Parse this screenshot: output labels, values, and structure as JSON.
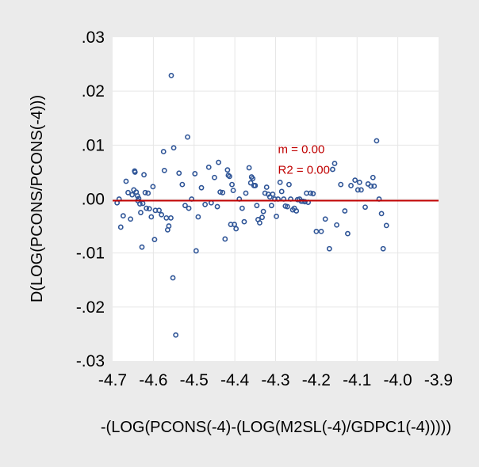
{
  "chart_data": {
    "type": "scatter",
    "title": "",
    "xlabel": "-(LOG(PCONS(-4)-(LOG(M2SL(-4)/GDPC1(-4)))))",
    "ylabel": "D(LOG(PCONS/PCONS(-4)))",
    "xlim": [
      -4.7,
      -3.9
    ],
    "ylim": [
      -0.03,
      0.03
    ],
    "x_ticks": [
      -4.7,
      -4.6,
      -4.5,
      -4.4,
      -4.3,
      -4.2,
      -4.1,
      -4.0,
      -3.9
    ],
    "x_tick_labels": [
      "-4.7",
      "-4.6",
      "-4.5",
      "-4.4",
      "-4.3",
      "-4.2",
      "-4.1",
      "-4.0",
      "-3.9"
    ],
    "y_ticks": [
      -0.03,
      -0.02,
      -0.01,
      0.0,
      0.01,
      0.02,
      0.03
    ],
    "y_tick_labels": [
      "-.03",
      "-.02",
      "-.01",
      ".00",
      ".01",
      ".02",
      ".03"
    ],
    "grid": true,
    "marker": "hollow-circle",
    "marker_color": "#2f5597",
    "fit_line": {
      "slope": 0.0,
      "intercept": -0.0003,
      "color": "#c00000"
    },
    "annotations": [
      {
        "text": "m = 0.00",
        "x": -4.3,
        "y": 0.0085,
        "color": "#c00000"
      },
      {
        "text": "R2 = 0.00",
        "x": -4.3,
        "y": 0.0047,
        "color": "#c00000"
      }
    ],
    "points": [
      [
        -4.684,
        0.0
      ],
      [
        -4.689,
        -0.0007
      ],
      [
        -4.68,
        -0.0052
      ],
      [
        -4.674,
        -0.0031
      ],
      [
        -4.667,
        0.0033
      ],
      [
        -4.662,
        0.0012
      ],
      [
        -4.656,
        -0.0037
      ],
      [
        -4.652,
        0.0008
      ],
      [
        -4.648,
        0.0017
      ],
      [
        -4.646,
        0.0052
      ],
      [
        -4.645,
        0.005
      ],
      [
        -4.642,
        0.0013
      ],
      [
        -4.639,
        0.0006
      ],
      [
        -4.638,
        -0.0003
      ],
      [
        -4.636,
        0.0001
      ],
      [
        -4.633,
        -0.0009
      ],
      [
        -4.631,
        -0.0025
      ],
      [
        -4.628,
        -0.0089
      ],
      [
        -4.626,
        -0.0008
      ],
      [
        -4.623,
        0.0045
      ],
      [
        -4.62,
        0.0012
      ],
      [
        -4.617,
        -0.0017
      ],
      [
        -4.613,
        0.0011
      ],
      [
        -4.61,
        -0.0018
      ],
      [
        -4.605,
        -0.0033
      ],
      [
        -4.601,
        0.0023
      ],
      [
        -4.597,
        -0.0075
      ],
      [
        -4.595,
        -0.0021
      ],
      [
        -4.586,
        -0.0021
      ],
      [
        -4.58,
        -0.0029
      ],
      [
        -4.575,
        0.0088
      ],
      [
        -4.573,
        0.0053
      ],
      [
        -4.568,
        -0.0035
      ],
      [
        -4.565,
        -0.0057
      ],
      [
        -4.562,
        -0.005
      ],
      [
        -4.557,
        -0.0035
      ],
      [
        -4.556,
        0.0229
      ],
      [
        -4.552,
        -0.0146
      ],
      [
        -4.55,
        0.0095
      ],
      [
        -4.545,
        -0.0252
      ],
      [
        -4.537,
        0.0048
      ],
      [
        -4.529,
        0.0027
      ],
      [
        -4.522,
        -0.0012
      ],
      [
        -4.516,
        0.0115
      ],
      [
        -4.513,
        -0.0017
      ],
      [
        -4.506,
        0.0
      ],
      [
        -4.498,
        0.0047
      ],
      [
        -4.495,
        -0.0096
      ],
      [
        -4.49,
        -0.0033
      ],
      [
        -4.482,
        0.0021
      ],
      [
        -4.473,
        -0.001
      ],
      [
        -4.464,
        0.0059
      ],
      [
        -4.458,
        -0.0007
      ],
      [
        -4.45,
        0.004
      ],
      [
        -4.443,
        -0.0014
      ],
      [
        -4.44,
        0.0068
      ],
      [
        -4.436,
        0.0013
      ],
      [
        -4.43,
        0.0012
      ],
      [
        -4.424,
        -0.0074
      ],
      [
        -4.418,
        0.0054
      ],
      [
        -4.416,
        0.0044
      ],
      [
        -4.413,
        0.0042
      ],
      [
        -4.41,
        -0.0047
      ],
      [
        -4.407,
        0.0027
      ],
      [
        -4.404,
        0.0016
      ],
      [
        -4.401,
        -0.0047
      ],
      [
        -4.397,
        -0.0055
      ],
      [
        -4.389,
        0.0
      ],
      [
        -4.382,
        -0.0017
      ],
      [
        -4.377,
        -0.0042
      ],
      [
        -4.373,
        0.0011
      ],
      [
        -4.365,
        0.0058
      ],
      [
        -4.361,
        0.003
      ],
      [
        -4.359,
        0.0041
      ],
      [
        -4.356,
        0.0038
      ],
      [
        -4.353,
        0.0025
      ],
      [
        -4.35,
        0.0025
      ],
      [
        -4.346,
        -0.0012
      ],
      [
        -4.343,
        -0.0038
      ],
      [
        -4.339,
        -0.0044
      ],
      [
        -4.333,
        -0.0034
      ],
      [
        -4.33,
        -0.0023
      ],
      [
        -4.326,
        0.0011
      ],
      [
        -4.322,
        0.0022
      ],
      [
        -4.318,
        0.0009
      ],
      [
        -4.314,
        0.0004
      ],
      [
        -4.31,
        -0.0012
      ],
      [
        -4.307,
        0.0009
      ],
      [
        -4.302,
        0.0
      ],
      [
        -4.298,
        -0.0032
      ],
      [
        -4.294,
        0.0
      ],
      [
        -4.289,
        0.0031
      ],
      [
        -4.285,
        0.0014
      ],
      [
        -4.28,
        0.0
      ],
      [
        -4.276,
        -0.0013
      ],
      [
        -4.271,
        -0.0014
      ],
      [
        -4.267,
        0.0027
      ],
      [
        -4.263,
        0.0
      ],
      [
        -4.258,
        -0.002
      ],
      [
        -4.254,
        -0.0017
      ],
      [
        -4.249,
        -0.0022
      ],
      [
        -4.246,
        -0.0001
      ],
      [
        -4.241,
        0.0
      ],
      [
        -4.237,
        -0.0004
      ],
      [
        -4.233,
        -0.0004
      ],
      [
        -4.228,
        -0.0005
      ],
      [
        -4.224,
        0.0011
      ],
      [
        -4.22,
        -0.0006
      ],
      [
        -4.214,
        0.0011
      ],
      [
        -4.208,
        0.001
      ],
      [
        -4.2,
        -0.006
      ],
      [
        -4.188,
        -0.006
      ],
      [
        -4.178,
        -0.0037
      ],
      [
        -4.168,
        -0.0092
      ],
      [
        -4.16,
        0.0055
      ],
      [
        -4.155,
        0.0066
      ],
      [
        -4.15,
        -0.0048
      ],
      [
        -4.14,
        0.0027
      ],
      [
        -4.13,
        -0.0022
      ],
      [
        -4.123,
        -0.0064
      ],
      [
        -4.115,
        0.0025
      ],
      [
        -4.105,
        0.0035
      ],
      [
        -4.098,
        0.0017
      ],
      [
        -4.094,
        0.0031
      ],
      [
        -4.09,
        0.0017
      ],
      [
        -4.08,
        -0.0015
      ],
      [
        -4.073,
        0.0028
      ],
      [
        -4.066,
        0.0024
      ],
      [
        -4.061,
        0.004
      ],
      [
        -4.058,
        0.0024
      ],
      [
        -4.052,
        0.0108
      ],
      [
        -4.046,
        0.0
      ],
      [
        -4.04,
        -0.0027
      ],
      [
        -4.036,
        -0.0092
      ],
      [
        -4.028,
        -0.0049
      ]
    ]
  }
}
